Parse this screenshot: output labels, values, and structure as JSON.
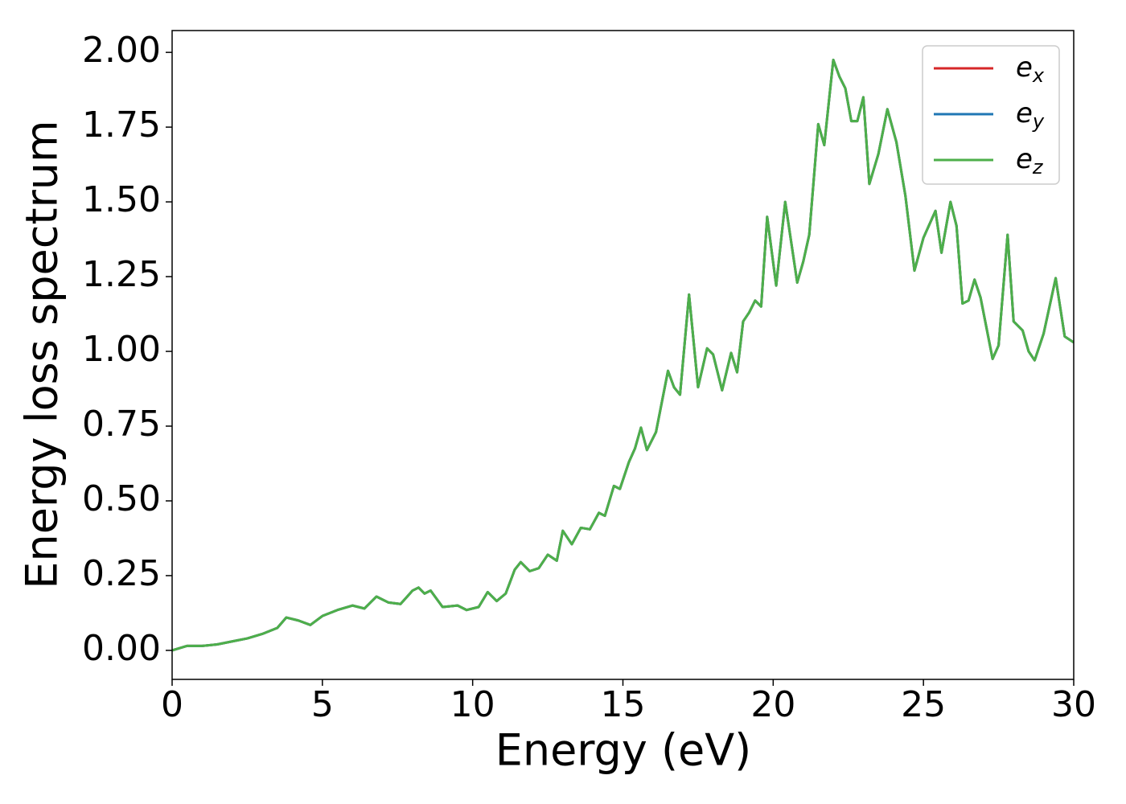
{
  "chart_data": {
    "type": "line",
    "xlabel": "Energy (eV)",
    "ylabel": "Energy loss spectrum",
    "x": [
      0,
      0.5,
      1.0,
      1.5,
      2.0,
      2.5,
      3.0,
      3.5,
      3.8,
      4.2,
      4.6,
      5.0,
      5.5,
      6.0,
      6.4,
      6.8,
      7.2,
      7.6,
      8.0,
      8.2,
      8.4,
      8.6,
      9.0,
      9.5,
      9.8,
      10.2,
      10.5,
      10.8,
      11.1,
      11.4,
      11.6,
      11.9,
      12.2,
      12.5,
      12.8,
      13.0,
      13.3,
      13.6,
      13.9,
      14.2,
      14.4,
      14.7,
      14.9,
      15.2,
      15.4,
      15.6,
      15.8,
      16.1,
      16.5,
      16.7,
      16.9,
      17.2,
      17.5,
      17.8,
      18.0,
      18.3,
      18.6,
      18.8,
      19.0,
      19.2,
      19.4,
      19.6,
      19.8,
      20.1,
      20.4,
      20.8,
      21.0,
      21.2,
      21.5,
      21.7,
      22.0,
      22.2,
      22.4,
      22.6,
      22.8,
      23.0,
      23.2,
      23.5,
      23.8,
      24.1,
      24.4,
      24.7,
      25.0,
      25.4,
      25.6,
      25.9,
      26.1,
      26.3,
      26.5,
      26.7,
      26.9,
      27.3,
      27.5,
      27.8,
      28.0,
      28.3,
      28.5,
      28.7,
      29.0,
      29.4,
      29.7,
      30.0
    ],
    "series": [
      {
        "name": "e_x",
        "color": "#d62728",
        "values": [
          0,
          0.015,
          0.015,
          0.02,
          0.03,
          0.04,
          0.055,
          0.075,
          0.11,
          0.1,
          0.085,
          0.115,
          0.135,
          0.15,
          0.14,
          0.18,
          0.16,
          0.155,
          0.2,
          0.21,
          0.19,
          0.2,
          0.145,
          0.15,
          0.135,
          0.145,
          0.195,
          0.165,
          0.19,
          0.27,
          0.295,
          0.265,
          0.275,
          0.32,
          0.3,
          0.4,
          0.355,
          0.41,
          0.405,
          0.46,
          0.45,
          0.55,
          0.54,
          0.63,
          0.675,
          0.745,
          0.67,
          0.73,
          0.935,
          0.88,
          0.855,
          1.19,
          0.88,
          1.01,
          0.99,
          0.87,
          0.995,
          0.93,
          1.1,
          1.13,
          1.17,
          1.15,
          1.45,
          1.22,
          1.5,
          1.23,
          1.3,
          1.39,
          1.76,
          1.69,
          1.975,
          1.92,
          1.88,
          1.77,
          1.77,
          1.85,
          1.56,
          1.66,
          1.81,
          1.7,
          1.52,
          1.27,
          1.38,
          1.47,
          1.33,
          1.5,
          1.42,
          1.16,
          1.17,
          1.24,
          1.18,
          0.975,
          1.02,
          1.39,
          1.1,
          1.07,
          1.0,
          0.97,
          1.06,
          1.245,
          1.05,
          1.03
        ]
      },
      {
        "name": "e_y",
        "color": "#1f77b4",
        "values": [
          0,
          0.015,
          0.015,
          0.02,
          0.03,
          0.04,
          0.055,
          0.075,
          0.11,
          0.1,
          0.085,
          0.115,
          0.135,
          0.15,
          0.14,
          0.18,
          0.16,
          0.155,
          0.2,
          0.21,
          0.19,
          0.2,
          0.145,
          0.15,
          0.135,
          0.145,
          0.195,
          0.165,
          0.19,
          0.27,
          0.295,
          0.265,
          0.275,
          0.32,
          0.3,
          0.4,
          0.355,
          0.41,
          0.405,
          0.46,
          0.45,
          0.55,
          0.54,
          0.63,
          0.675,
          0.745,
          0.67,
          0.73,
          0.935,
          0.88,
          0.855,
          1.19,
          0.88,
          1.01,
          0.99,
          0.87,
          0.995,
          0.93,
          1.1,
          1.13,
          1.17,
          1.15,
          1.45,
          1.22,
          1.5,
          1.23,
          1.3,
          1.39,
          1.76,
          1.69,
          1.975,
          1.92,
          1.88,
          1.77,
          1.77,
          1.85,
          1.56,
          1.66,
          1.81,
          1.7,
          1.52,
          1.27,
          1.38,
          1.47,
          1.33,
          1.5,
          1.42,
          1.16,
          1.17,
          1.24,
          1.18,
          0.975,
          1.02,
          1.39,
          1.1,
          1.07,
          1.0,
          0.97,
          1.06,
          1.245,
          1.05,
          1.03
        ]
      },
      {
        "name": "e_z",
        "color": "#4daf4a",
        "values": [
          0,
          0.015,
          0.015,
          0.02,
          0.03,
          0.04,
          0.055,
          0.075,
          0.11,
          0.1,
          0.085,
          0.115,
          0.135,
          0.15,
          0.14,
          0.18,
          0.16,
          0.155,
          0.2,
          0.21,
          0.19,
          0.2,
          0.145,
          0.15,
          0.135,
          0.145,
          0.195,
          0.165,
          0.19,
          0.27,
          0.295,
          0.265,
          0.275,
          0.32,
          0.3,
          0.4,
          0.355,
          0.41,
          0.405,
          0.46,
          0.45,
          0.55,
          0.54,
          0.63,
          0.675,
          0.745,
          0.67,
          0.73,
          0.935,
          0.88,
          0.855,
          1.19,
          0.88,
          1.01,
          0.99,
          0.87,
          0.995,
          0.93,
          1.1,
          1.13,
          1.17,
          1.15,
          1.45,
          1.22,
          1.5,
          1.23,
          1.3,
          1.39,
          1.76,
          1.69,
          1.975,
          1.92,
          1.88,
          1.77,
          1.77,
          1.85,
          1.56,
          1.66,
          1.81,
          1.7,
          1.52,
          1.27,
          1.38,
          1.47,
          1.33,
          1.5,
          1.42,
          1.16,
          1.17,
          1.24,
          1.18,
          0.975,
          1.02,
          1.39,
          1.1,
          1.07,
          1.0,
          0.97,
          1.06,
          1.245,
          1.05,
          1.03
        ]
      }
    ],
    "xlim": [
      0,
      30
    ],
    "xticks": [
      0,
      5,
      10,
      15,
      20,
      25,
      30
    ],
    "ylim": [
      -0.097,
      2.073
    ],
    "yticks": [
      {
        "value": 0,
        "label": "0.00"
      },
      {
        "value": 0.25,
        "label": "0.25"
      },
      {
        "value": 0.5,
        "label": "0.50"
      },
      {
        "value": 0.75,
        "label": "0.75"
      },
      {
        "value": 1.0,
        "label": "1.00"
      },
      {
        "value": 1.25,
        "label": "1.25"
      },
      {
        "value": 1.5,
        "label": "1.50"
      },
      {
        "value": 1.75,
        "label": "1.75"
      },
      {
        "value": 2.0,
        "label": "2.00"
      }
    ],
    "legend": "upper right",
    "grid": false
  }
}
